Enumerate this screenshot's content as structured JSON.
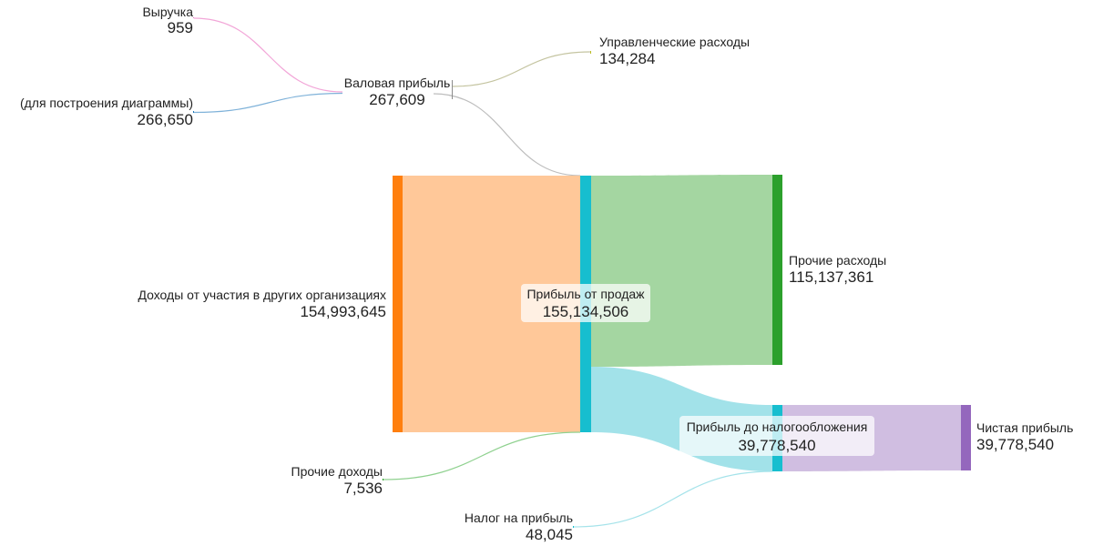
{
  "chart_data": {
    "type": "sankey",
    "nodes": [
      {
        "id": "revenue",
        "label": "Выручка",
        "value_label": "959",
        "value": 959,
        "color": "#e377c2"
      },
      {
        "id": "for_diagram",
        "label": "(для построения диаграммы)",
        "value_label": "266,650",
        "value": 266650,
        "color": "#1f77b4"
      },
      {
        "id": "gross",
        "label": "Валовая прибыль",
        "value_label": "267,609",
        "value": 267609,
        "color": "#8c8c8c"
      },
      {
        "id": "mgmt",
        "label": "Управленческие расходы",
        "value_label": "134,284",
        "value": 134284,
        "color": "#bcbd22"
      },
      {
        "id": "participation",
        "label": "Доходы от участия в других организациях",
        "value_label": "154,993,645",
        "value": 154993645,
        "color": "#ff7f0e"
      },
      {
        "id": "other_income",
        "label": "Прочие доходы",
        "value_label": "7,536",
        "value": 7536,
        "color": "#2ca02c"
      },
      {
        "id": "sales_profit",
        "label": "Прибыль от продаж",
        "value_label": "155,134,506",
        "value": 155134506,
        "color": "#17becf"
      },
      {
        "id": "other_exp",
        "label": "Прочие расходы",
        "value_label": "115,137,361",
        "value": 115137361,
        "color": "#2ca02c"
      },
      {
        "id": "pretax",
        "label": "Прибыль до налогообложения",
        "value_label": "39,778,540",
        "value": 39778540,
        "color": "#17becf"
      },
      {
        "id": "tax",
        "label": "Налог на прибыль",
        "value_label": "48,045",
        "value": 48045,
        "color": "#17becf"
      },
      {
        "id": "net",
        "label": "Чистая прибыль",
        "value_label": "39,778,540",
        "value": 39778540,
        "color": "#9467bd"
      }
    ],
    "links": [
      {
        "source": "revenue",
        "target": "gross",
        "value": 959,
        "color": "#f2a6d8"
      },
      {
        "source": "for_diagram",
        "target": "gross",
        "value": 266650,
        "color": "#7fb2d9"
      },
      {
        "source": "gross",
        "target": "mgmt",
        "value": 134284,
        "color": "#c4c4a0"
      },
      {
        "source": "gross",
        "target": "sales_profit",
        "value": 133325,
        "color": "#bdbdbd"
      },
      {
        "source": "participation",
        "target": "sales_profit",
        "value": 154993645,
        "color": "#ffc594"
      },
      {
        "source": "other_income",
        "target": "sales_profit",
        "value": 7536,
        "color": "#8fd18f"
      },
      {
        "source": "sales_profit",
        "target": "other_exp",
        "value": 115137361,
        "color": "#9fd49c"
      },
      {
        "source": "sales_profit",
        "target": "pretax",
        "value": 39778540,
        "color": "#9de0e8"
      },
      {
        "source": "tax",
        "target": "pretax",
        "value": 48045,
        "color": "#a5e3ea"
      },
      {
        "source": "pretax",
        "target": "net",
        "value": 39778540,
        "color": "#cdbadf"
      }
    ]
  }
}
